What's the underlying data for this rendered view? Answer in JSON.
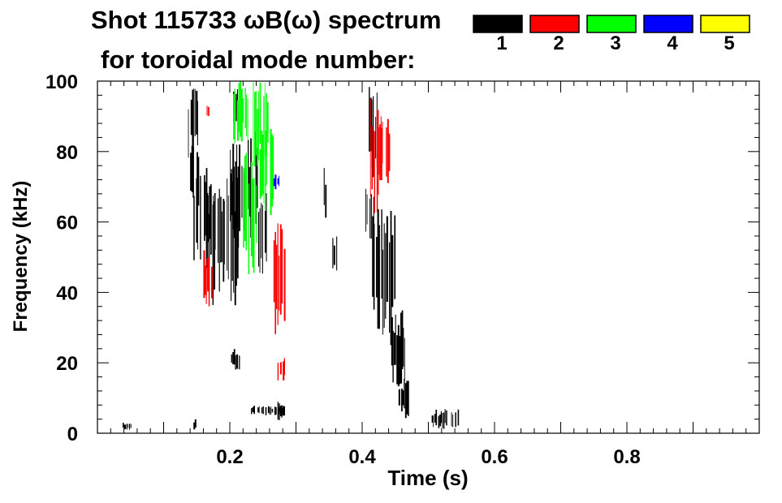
{
  "chart_data": {
    "type": "heatmap",
    "title_line1": "Shot 115733 ωB(ω) spectrum",
    "title_line2": "for toroidal mode number:",
    "xlabel": "Time (s)",
    "ylabel": "Frequency (kHz)",
    "xlim": [
      0.0,
      1.0
    ],
    "ylim": [
      0,
      100
    ],
    "x_ticks": [
      {
        "value": 0.2,
        "label": "0.2"
      },
      {
        "value": 0.4,
        "label": "0.4"
      },
      {
        "value": 0.6,
        "label": "0.6"
      },
      {
        "value": 0.8,
        "label": "0.8"
      }
    ],
    "y_ticks": [
      {
        "value": 0,
        "label": "0"
      },
      {
        "value": 20,
        "label": "20"
      },
      {
        "value": 40,
        "label": "40"
      },
      {
        "value": 60,
        "label": "60"
      },
      {
        "value": 80,
        "label": "80"
      },
      {
        "value": 100,
        "label": "100"
      }
    ],
    "legend": {
      "placement": "top-right",
      "entries": [
        {
          "label": "1",
          "color": "#000000"
        },
        {
          "label": "2",
          "color": "#ff0000"
        },
        {
          "label": "3",
          "color": "#00ff00"
        },
        {
          "label": "4",
          "color": "#0000ff"
        },
        {
          "label": "5",
          "color": "#ffff00"
        }
      ]
    },
    "regions": [
      {
        "mode": "1",
        "t": [
          0.135,
          0.152
        ],
        "f": [
          78,
          99
        ]
      },
      {
        "mode": "1",
        "t": [
          0.14,
          0.152
        ],
        "f": [
          62,
          82
        ]
      },
      {
        "mode": "1",
        "t": [
          0.145,
          0.178
        ],
        "f": [
          48,
          74
        ]
      },
      {
        "mode": "1",
        "t": [
          0.162,
          0.212
        ],
        "f": [
          36,
          76
        ]
      },
      {
        "mode": "1",
        "t": [
          0.2,
          0.222
        ],
        "f": [
          52,
          84
        ]
      },
      {
        "mode": "1",
        "t": [
          0.205,
          0.218
        ],
        "f": [
          88,
          98
        ]
      },
      {
        "mode": "1",
        "t": [
          0.225,
          0.242
        ],
        "f": [
          55,
          86
        ]
      },
      {
        "mode": "1",
        "t": [
          0.243,
          0.258
        ],
        "f": [
          45,
          70
        ]
      },
      {
        "mode": "1",
        "t": [
          0.2,
          0.215
        ],
        "f": [
          18,
          24
        ]
      },
      {
        "mode": "1",
        "t": [
          0.232,
          0.28
        ],
        "f": [
          5,
          8
        ]
      },
      {
        "mode": "1",
        "t": [
          0.27,
          0.282
        ],
        "f": [
          3,
          9
        ]
      },
      {
        "mode": "1",
        "t": [
          0.41,
          0.422
        ],
        "f": [
          72,
          99
        ]
      },
      {
        "mode": "1",
        "t": [
          0.405,
          0.418
        ],
        "f": [
          55,
          70
        ]
      },
      {
        "mode": "1",
        "t": [
          0.415,
          0.452
        ],
        "f": [
          25,
          66
        ]
      },
      {
        "mode": "1",
        "t": [
          0.442,
          0.465
        ],
        "f": [
          12,
          35
        ]
      },
      {
        "mode": "1",
        "t": [
          0.455,
          0.47
        ],
        "f": [
          4,
          16
        ]
      },
      {
        "mode": "1",
        "t": [
          0.505,
          0.545
        ],
        "f": [
          1,
          7
        ]
      },
      {
        "mode": "1",
        "t": [
          0.34,
          0.348
        ],
        "f": [
          60,
          76
        ]
      },
      {
        "mode": "1",
        "t": [
          0.355,
          0.362
        ],
        "f": [
          45,
          56
        ]
      },
      {
        "mode": "1",
        "t": [
          0.038,
          0.05
        ],
        "f": [
          1,
          3
        ]
      },
      {
        "mode": "1",
        "t": [
          0.145,
          0.15
        ],
        "f": [
          1,
          4
        ]
      },
      {
        "mode": "2",
        "t": [
          0.16,
          0.172
        ],
        "f": [
          36,
          52
        ]
      },
      {
        "mode": "2",
        "t": [
          0.165,
          0.17
        ],
        "f": [
          88,
          95
        ]
      },
      {
        "mode": "2",
        "t": [
          0.266,
          0.282
        ],
        "f": [
          28,
          62
        ]
      },
      {
        "mode": "2",
        "t": [
          0.272,
          0.282
        ],
        "f": [
          14,
          22
        ]
      },
      {
        "mode": "2",
        "t": [
          0.412,
          0.428
        ],
        "f": [
          62,
          96
        ]
      },
      {
        "mode": "2",
        "t": [
          0.424,
          0.44
        ],
        "f": [
          70,
          90
        ]
      },
      {
        "mode": "3",
        "t": [
          0.205,
          0.228
        ],
        "f": [
          82,
          100
        ]
      },
      {
        "mode": "3",
        "t": [
          0.22,
          0.24
        ],
        "f": [
          42,
          80
        ]
      },
      {
        "mode": "3",
        "t": [
          0.235,
          0.258
        ],
        "f": [
          74,
          100
        ]
      },
      {
        "mode": "3",
        "t": [
          0.245,
          0.265
        ],
        "f": [
          60,
          90
        ]
      },
      {
        "mode": "4",
        "t": [
          0.266,
          0.274
        ],
        "f": [
          69,
          74
        ]
      }
    ]
  }
}
